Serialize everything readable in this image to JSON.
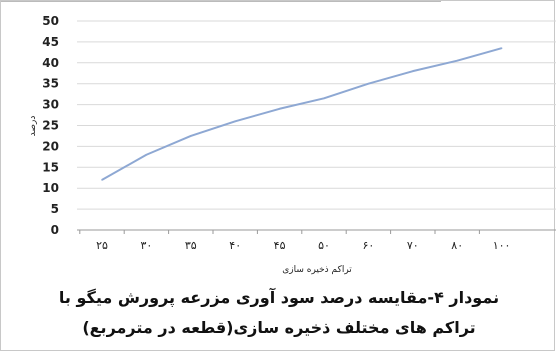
{
  "chart_data": {
    "type": "line",
    "title": "",
    "xlabel": "تراکم ذخیره سازی",
    "ylabel": "درصد",
    "categories": [
      "۲۵",
      "۳۰",
      "۳۵",
      "۴۰",
      "۴۵",
      "۵۰",
      "۶۰",
      "۷۰",
      "۸۰",
      "۱۰۰"
    ],
    "y_ticks": [
      "0",
      "5",
      "10",
      "15",
      "20",
      "25",
      "30",
      "35",
      "40",
      "45",
      "50"
    ],
    "series": [
      {
        "values": [
          12,
          18,
          22.5,
          26,
          29,
          31.5,
          35,
          38,
          40.5,
          43.5
        ]
      }
    ],
    "ylim": [
      0,
      50
    ],
    "grid": true,
    "line_color": "#8ea8d3"
  },
  "caption": {
    "line1": "نمودار ۴-مقایسه درصد سود آوری مزرعه پرورش میگو با",
    "line2": "تراکم های مختلف ذخیره سازی(قطعه در مترمربع)"
  }
}
